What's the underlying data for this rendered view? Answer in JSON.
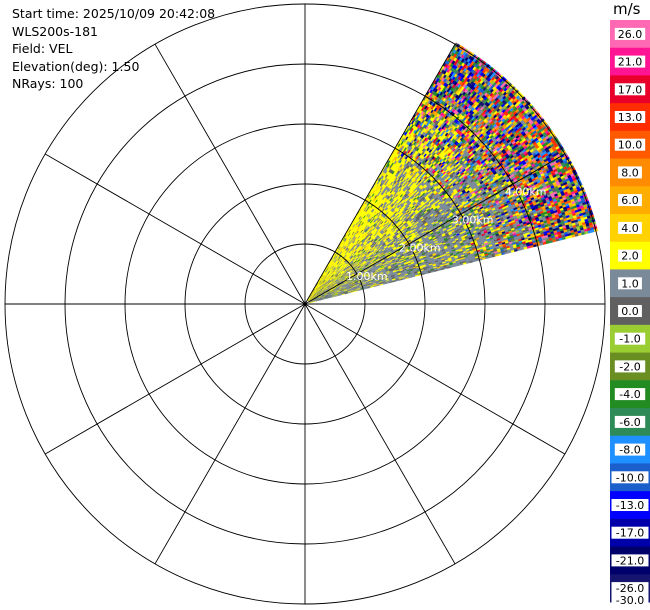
{
  "info": {
    "start_time": "Start time: 2025/10/09 20:42:08",
    "station": "WLS200s-181",
    "field": "Field: VEL",
    "elevation": "Elevation(deg): 1.50",
    "nrays": "NRays: 100"
  },
  "colorbar": {
    "unit": "m/s",
    "bounds": [
      26.0,
      21.0,
      17.0,
      13.0,
      10.0,
      8.0,
      6.0,
      4.0,
      2.0,
      1.0,
      0.0,
      -1.0,
      -2.0,
      -4.0,
      -6.0,
      -8.0,
      -10.0,
      -13.0,
      -17.0,
      -21.0,
      -26.0,
      -30.0
    ],
    "labels": [
      "26.0",
      "21.0",
      "17.0",
      "13.0",
      "10.0",
      "8.0",
      "6.0",
      "4.0",
      "2.0",
      "1.0",
      "0.0",
      "-1.0",
      "-2.0",
      "-4.0",
      "-6.0",
      "-8.0",
      "-10.0",
      "-13.0",
      "-17.0",
      "-21.0",
      "-26.0",
      "-30.0"
    ],
    "colors": [
      "#ff69b4",
      "#ff1493",
      "#e8002a",
      "#ff2d00",
      "#ff5a00",
      "#ff8c00",
      "#ffae00",
      "#ffd200",
      "#ffff00",
      "#7a8a99",
      "#606060",
      "#9acd32",
      "#6b8e23",
      "#228b22",
      "#2e8b57",
      "#1e90ff",
      "#1a5fcc",
      "#0000ff",
      "#0000aa",
      "#00006b",
      "#151570"
    ]
  },
  "chart_data": {
    "type": "polar-ppi",
    "field": "VEL",
    "unit": "m/s",
    "range_ring_labels": [
      "1.00km",
      "2.00km",
      "3.00km",
      "4.00km"
    ],
    "rings_km": [
      1,
      2,
      3,
      4,
      5
    ],
    "spoke_step_deg": 30,
    "sector_azimuth_deg": [
      30,
      76
    ],
    "max_range_km": 5.0,
    "observations": "Mostly yellow (+2 to +4 m/s) near the radar on the north-west side of the sector, grey (0 to +1 m/s) on the south side, and speckled noise of all colours beyond about 3 km."
  }
}
